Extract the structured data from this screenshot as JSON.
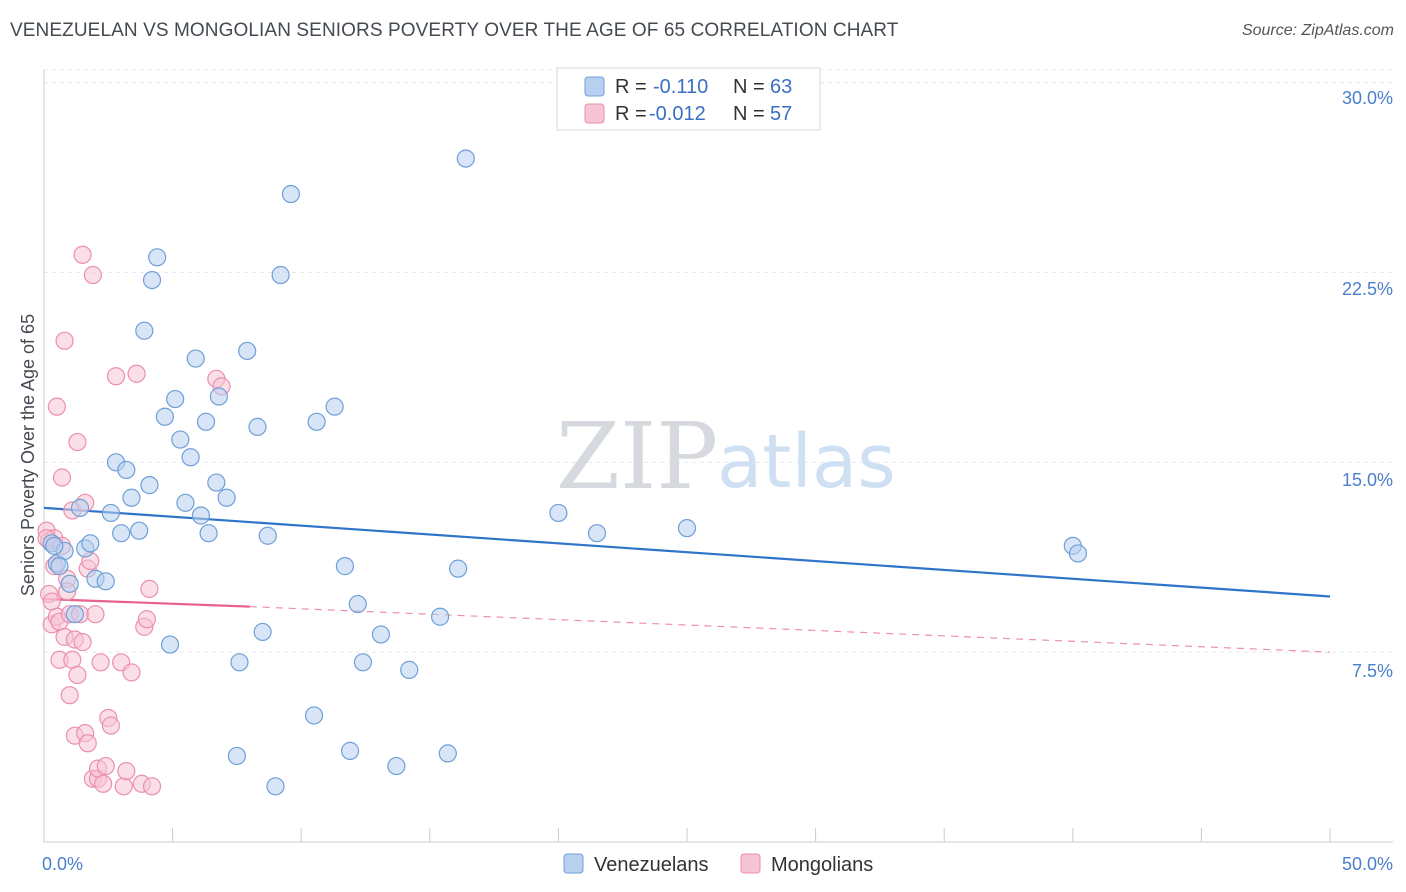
{
  "header": {
    "title": "VENEZUELAN VS MONGOLIAN SENIORS POVERTY OVER THE AGE OF 65 CORRELATION CHART",
    "source": "Source: ZipAtlas.com"
  },
  "watermark": {
    "zip": "ZIP",
    "atlas": "atlas"
  },
  "legend": {
    "r_label": "R =",
    "n_label": "N =",
    "series": [
      {
        "name": "Venezuelans",
        "r": "-0.110",
        "n": "63"
      },
      {
        "name": "Mongolians",
        "r": "-0.012",
        "n": "57"
      }
    ]
  },
  "colors": {
    "venezuelan_fill": "#b8d0f0",
    "venezuelan_stroke": "#6f9fd8",
    "venezuelan_line": "#2f74c8",
    "mongolian_fill": "#f7c4d3",
    "mongolian_stroke": "#eb8fad",
    "mongolian_line": "#e8608f"
  },
  "chart_data": {
    "type": "scatter",
    "title": "VENEZUELAN VS MONGOLIAN SENIORS POVERTY OVER THE AGE OF 65 CORRELATION CHART",
    "xlabel": "",
    "ylabel": "Seniors Poverty Over the Age of 65",
    "xlim": [
      0,
      50
    ],
    "ylim": [
      0,
      30.5
    ],
    "x_tick_labels": [
      "0.0%",
      "50.0%"
    ],
    "y_ticks": [
      7.5,
      15.0,
      22.5,
      30.0
    ],
    "y_tick_labels": [
      "7.5%",
      "15.0%",
      "22.5%",
      "30.0%"
    ],
    "grid": true,
    "series": [
      {
        "name": "Venezuelans",
        "trend": {
          "x": [
            0,
            50
          ],
          "y": [
            13.2,
            9.7
          ],
          "style": "solid"
        },
        "points": [
          [
            0.3,
            11.8
          ],
          [
            0.5,
            11.0
          ],
          [
            0.8,
            11.5
          ],
          [
            0.6,
            10.9
          ],
          [
            1.0,
            10.2
          ],
          [
            1.4,
            13.2
          ],
          [
            1.2,
            9.0
          ],
          [
            1.6,
            11.6
          ],
          [
            1.8,
            11.8
          ],
          [
            2.0,
            10.4
          ],
          [
            2.4,
            10.3
          ],
          [
            2.6,
            13.0
          ],
          [
            2.8,
            15.0
          ],
          [
            3.0,
            12.2
          ],
          [
            3.2,
            14.7
          ],
          [
            3.4,
            13.6
          ],
          [
            3.7,
            12.3
          ],
          [
            3.9,
            20.2
          ],
          [
            4.1,
            14.1
          ],
          [
            4.2,
            22.2
          ],
          [
            4.4,
            23.1
          ],
          [
            4.7,
            16.8
          ],
          [
            4.9,
            7.8
          ],
          [
            5.1,
            17.5
          ],
          [
            5.3,
            15.9
          ],
          [
            5.5,
            13.4
          ],
          [
            5.7,
            15.2
          ],
          [
            5.9,
            19.1
          ],
          [
            6.1,
            12.9
          ],
          [
            6.3,
            16.6
          ],
          [
            6.4,
            12.2
          ],
          [
            6.7,
            14.2
          ],
          [
            6.8,
            17.6
          ],
          [
            7.1,
            13.6
          ],
          [
            7.5,
            3.4
          ],
          [
            7.6,
            7.1
          ],
          [
            7.9,
            19.4
          ],
          [
            8.3,
            16.4
          ],
          [
            8.5,
            8.3
          ],
          [
            8.7,
            12.1
          ],
          [
            9.0,
            2.2
          ],
          [
            9.2,
            22.4
          ],
          [
            9.6,
            25.6
          ],
          [
            10.5,
            5.0
          ],
          [
            10.6,
            16.6
          ],
          [
            11.3,
            17.2
          ],
          [
            11.7,
            10.9
          ],
          [
            11.9,
            3.6
          ],
          [
            12.2,
            9.4
          ],
          [
            12.4,
            7.1
          ],
          [
            13.1,
            8.2
          ],
          [
            13.7,
            3.0
          ],
          [
            14.2,
            6.8
          ],
          [
            15.4,
            8.9
          ],
          [
            15.7,
            3.5
          ],
          [
            16.1,
            10.8
          ],
          [
            16.4,
            27.0
          ],
          [
            20.0,
            13.0
          ],
          [
            21.5,
            12.2
          ],
          [
            25.0,
            12.4
          ],
          [
            40.0,
            11.7
          ],
          [
            40.2,
            11.4
          ],
          [
            0.4,
            11.7
          ]
        ]
      },
      {
        "name": "Mongolians",
        "trend": {
          "x": [
            0,
            8,
            50
          ],
          "y": [
            9.6,
            9.3,
            7.5
          ],
          "style": "solid-then-dashed"
        },
        "points": [
          [
            0.1,
            12.3
          ],
          [
            0.2,
            11.9
          ],
          [
            0.2,
            9.8
          ],
          [
            0.3,
            9.5
          ],
          [
            0.3,
            8.6
          ],
          [
            0.4,
            12.0
          ],
          [
            0.4,
            10.9
          ],
          [
            0.5,
            8.9
          ],
          [
            0.5,
            17.2
          ],
          [
            0.6,
            7.2
          ],
          [
            0.6,
            8.7
          ],
          [
            0.7,
            14.4
          ],
          [
            0.7,
            11.7
          ],
          [
            0.8,
            19.8
          ],
          [
            0.8,
            8.1
          ],
          [
            0.9,
            10.4
          ],
          [
            0.9,
            9.9
          ],
          [
            1.0,
            9.0
          ],
          [
            1.0,
            5.8
          ],
          [
            1.1,
            13.1
          ],
          [
            1.1,
            7.2
          ],
          [
            1.2,
            8.0
          ],
          [
            1.2,
            4.2
          ],
          [
            1.3,
            6.6
          ],
          [
            1.3,
            15.8
          ],
          [
            1.4,
            9.0
          ],
          [
            1.5,
            23.2
          ],
          [
            1.5,
            7.9
          ],
          [
            1.6,
            13.4
          ],
          [
            1.6,
            4.3
          ],
          [
            1.7,
            3.9
          ],
          [
            1.7,
            10.8
          ],
          [
            1.8,
            11.1
          ],
          [
            1.9,
            22.4
          ],
          [
            1.9,
            2.5
          ],
          [
            2.0,
            9.0
          ],
          [
            2.1,
            2.5
          ],
          [
            2.1,
            2.9
          ],
          [
            2.2,
            7.1
          ],
          [
            2.3,
            2.3
          ],
          [
            2.4,
            3.0
          ],
          [
            2.5,
            4.9
          ],
          [
            2.6,
            4.6
          ],
          [
            2.8,
            18.4
          ],
          [
            3.0,
            7.1
          ],
          [
            3.1,
            2.2
          ],
          [
            3.2,
            2.8
          ],
          [
            3.4,
            6.7
          ],
          [
            3.6,
            18.5
          ],
          [
            3.8,
            2.3
          ],
          [
            3.9,
            8.5
          ],
          [
            4.0,
            8.8
          ],
          [
            4.1,
            10.0
          ],
          [
            4.2,
            2.2
          ],
          [
            6.7,
            18.3
          ],
          [
            6.9,
            18.0
          ],
          [
            0.1,
            12.0
          ]
        ]
      }
    ]
  }
}
